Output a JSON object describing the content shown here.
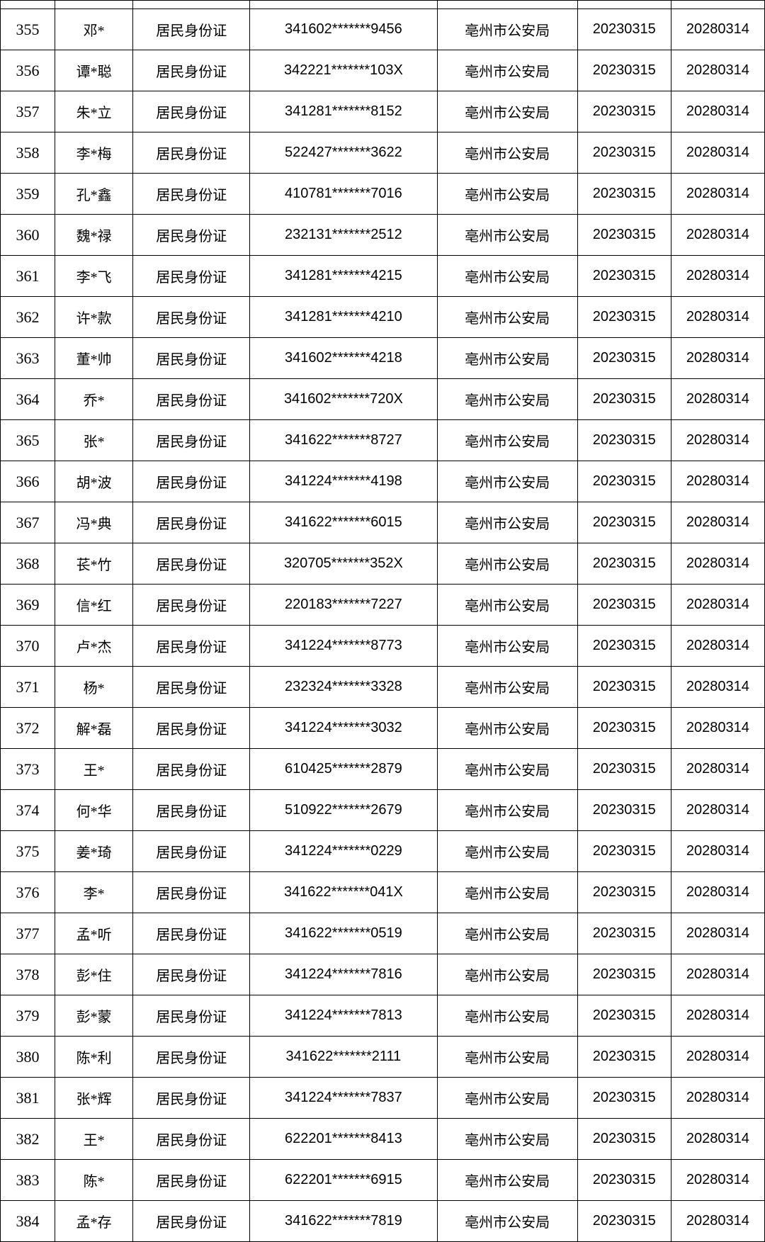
{
  "table": {
    "rows": [
      {
        "num": "355",
        "name": "邓*",
        "type": "居民身份证",
        "id": "341602*******9456",
        "dept": "亳州市公安局",
        "date1": "20230315",
        "date2": "20280314"
      },
      {
        "num": "356",
        "name": "谭*聪",
        "type": "居民身份证",
        "id": "342221*******103X",
        "dept": "亳州市公安局",
        "date1": "20230315",
        "date2": "20280314"
      },
      {
        "num": "357",
        "name": "朱*立",
        "type": "居民身份证",
        "id": "341281*******8152",
        "dept": "亳州市公安局",
        "date1": "20230315",
        "date2": "20280314"
      },
      {
        "num": "358",
        "name": "李*梅",
        "type": "居民身份证",
        "id": "522427*******3622",
        "dept": "亳州市公安局",
        "date1": "20230315",
        "date2": "20280314"
      },
      {
        "num": "359",
        "name": "孔*鑫",
        "type": "居民身份证",
        "id": "410781*******7016",
        "dept": "亳州市公安局",
        "date1": "20230315",
        "date2": "20280314"
      },
      {
        "num": "360",
        "name": "魏*禄",
        "type": "居民身份证",
        "id": "232131*******2512",
        "dept": "亳州市公安局",
        "date1": "20230315",
        "date2": "20280314"
      },
      {
        "num": "361",
        "name": "李*飞",
        "type": "居民身份证",
        "id": "341281*******4215",
        "dept": "亳州市公安局",
        "date1": "20230315",
        "date2": "20280314"
      },
      {
        "num": "362",
        "name": "许*款",
        "type": "居民身份证",
        "id": "341281*******4210",
        "dept": "亳州市公安局",
        "date1": "20230315",
        "date2": "20280314"
      },
      {
        "num": "363",
        "name": "董*帅",
        "type": "居民身份证",
        "id": "341602*******4218",
        "dept": "亳州市公安局",
        "date1": "20230315",
        "date2": "20280314"
      },
      {
        "num": "364",
        "name": "乔*",
        "type": "居民身份证",
        "id": "341602*******720X",
        "dept": "亳州市公安局",
        "date1": "20230315",
        "date2": "20280314"
      },
      {
        "num": "365",
        "name": "张*",
        "type": "居民身份证",
        "id": "341622*******8727",
        "dept": "亳州市公安局",
        "date1": "20230315",
        "date2": "20280314"
      },
      {
        "num": "366",
        "name": "胡*波",
        "type": "居民身份证",
        "id": "341224*******4198",
        "dept": "亳州市公安局",
        "date1": "20230315",
        "date2": "20280314"
      },
      {
        "num": "367",
        "name": "冯*典",
        "type": "居民身份证",
        "id": "341622*******6015",
        "dept": "亳州市公安局",
        "date1": "20230315",
        "date2": "20280314"
      },
      {
        "num": "368",
        "name": "苌*竹",
        "type": "居民身份证",
        "id": "320705*******352X",
        "dept": "亳州市公安局",
        "date1": "20230315",
        "date2": "20280314"
      },
      {
        "num": "369",
        "name": "信*红",
        "type": "居民身份证",
        "id": "220183*******7227",
        "dept": "亳州市公安局",
        "date1": "20230315",
        "date2": "20280314"
      },
      {
        "num": "370",
        "name": "卢*杰",
        "type": "居民身份证",
        "id": "341224*******8773",
        "dept": "亳州市公安局",
        "date1": "20230315",
        "date2": "20280314"
      },
      {
        "num": "371",
        "name": "杨*",
        "type": "居民身份证",
        "id": "232324*******3328",
        "dept": "亳州市公安局",
        "date1": "20230315",
        "date2": "20280314"
      },
      {
        "num": "372",
        "name": "解*磊",
        "type": "居民身份证",
        "id": "341224*******3032",
        "dept": "亳州市公安局",
        "date1": "20230315",
        "date2": "20280314"
      },
      {
        "num": "373",
        "name": "王*",
        "type": "居民身份证",
        "id": "610425*******2879",
        "dept": "亳州市公安局",
        "date1": "20230315",
        "date2": "20280314"
      },
      {
        "num": "374",
        "name": "何*华",
        "type": "居民身份证",
        "id": "510922*******2679",
        "dept": "亳州市公安局",
        "date1": "20230315",
        "date2": "20280314"
      },
      {
        "num": "375",
        "name": "姜*琦",
        "type": "居民身份证",
        "id": "341224*******0229",
        "dept": "亳州市公安局",
        "date1": "20230315",
        "date2": "20280314"
      },
      {
        "num": "376",
        "name": "李*",
        "type": "居民身份证",
        "id": "341622*******041X",
        "dept": "亳州市公安局",
        "date1": "20230315",
        "date2": "20280314"
      },
      {
        "num": "377",
        "name": "孟*听",
        "type": "居民身份证",
        "id": "341622*******0519",
        "dept": "亳州市公安局",
        "date1": "20230315",
        "date2": "20280314"
      },
      {
        "num": "378",
        "name": "彭*住",
        "type": "居民身份证",
        "id": "341224*******7816",
        "dept": "亳州市公安局",
        "date1": "20230315",
        "date2": "20280314"
      },
      {
        "num": "379",
        "name": "彭*蒙",
        "type": "居民身份证",
        "id": "341224*******7813",
        "dept": "亳州市公安局",
        "date1": "20230315",
        "date2": "20280314"
      },
      {
        "num": "380",
        "name": "陈*利",
        "type": "居民身份证",
        "id": "341622*******2111",
        "dept": "亳州市公安局",
        "date1": "20230315",
        "date2": "20280314"
      },
      {
        "num": "381",
        "name": "张*辉",
        "type": "居民身份证",
        "id": "341224*******7837",
        "dept": "亳州市公安局",
        "date1": "20230315",
        "date2": "20280314"
      },
      {
        "num": "382",
        "name": "王*",
        "type": "居民身份证",
        "id": "622201*******8413",
        "dept": "亳州市公安局",
        "date1": "20230315",
        "date2": "20280314"
      },
      {
        "num": "383",
        "name": "陈*",
        "type": "居民身份证",
        "id": "622201*******6915",
        "dept": "亳州市公安局",
        "date1": "20230315",
        "date2": "20280314"
      },
      {
        "num": "384",
        "name": "孟*存",
        "type": "居民身份证",
        "id": "341622*******7819",
        "dept": "亳州市公安局",
        "date1": "20230315",
        "date2": "20280314"
      }
    ]
  }
}
